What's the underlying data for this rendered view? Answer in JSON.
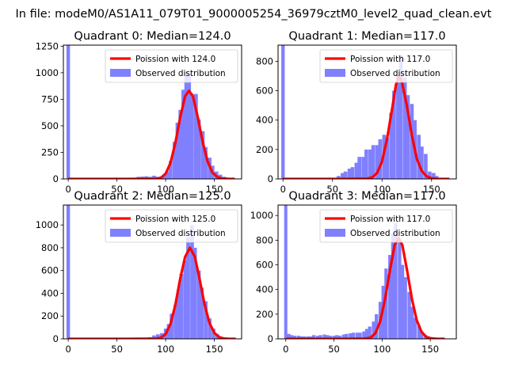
{
  "suptitle": "In file: modeM0/AS1A11_079T01_9000005254_36979cztM0_level2_quad_clean.evt",
  "chart_data": [
    {
      "type": "bar",
      "title": "Quadrant 0: Median=124.0",
      "median": 124.0,
      "xlim": [
        -5,
        178
      ],
      "ylim": [
        0,
        1260
      ],
      "xticks": [
        0,
        50,
        100,
        150
      ],
      "yticks": [
        0,
        250,
        500,
        750,
        1000,
        1250
      ],
      "bin_width": 3.6,
      "zero_bin": 1260,
      "legend": {
        "position": "upper right",
        "entries": [
          "Poission with 124.0",
          "Observed distribution"
        ]
      },
      "observed": [
        [
          72,
          20
        ],
        [
          76,
          22
        ],
        [
          80,
          25
        ],
        [
          84,
          20
        ],
        [
          88,
          30
        ],
        [
          92,
          20
        ],
        [
          96,
          25
        ],
        [
          99,
          40
        ],
        [
          102,
          70
        ],
        [
          105,
          170
        ],
        [
          109,
          350
        ],
        [
          112,
          530
        ],
        [
          115,
          650
        ],
        [
          118,
          840
        ],
        [
          121,
          1010
        ],
        [
          124,
          990
        ],
        [
          127,
          800
        ],
        [
          131,
          800
        ],
        [
          134,
          560
        ],
        [
          138,
          450
        ],
        [
          141,
          300
        ],
        [
          145,
          200
        ],
        [
          148,
          125
        ],
        [
          152,
          70
        ],
        [
          156,
          40
        ],
        [
          160,
          20
        ],
        [
          164,
          10
        ]
      ],
      "poisson": [
        [
          0,
          0
        ],
        [
          60,
          0
        ],
        [
          90,
          2
        ],
        [
          95,
          10
        ],
        [
          100,
          50
        ],
        [
          105,
          150
        ],
        [
          110,
          340
        ],
        [
          115,
          580
        ],
        [
          120,
          780
        ],
        [
          124,
          830
        ],
        [
          128,
          780
        ],
        [
          133,
          580
        ],
        [
          138,
          350
        ],
        [
          143,
          165
        ],
        [
          148,
          60
        ],
        [
          153,
          18
        ],
        [
          158,
          4
        ],
        [
          165,
          0
        ],
        [
          171,
          0
        ]
      ]
    },
    {
      "type": "bar",
      "title": "Quadrant 1: Median=117.0",
      "median": 117.0,
      "xlim": [
        -5,
        175
      ],
      "ylim": [
        0,
        910
      ],
      "xticks": [
        0,
        50,
        100,
        150
      ],
      "yticks": [
        0,
        200,
        400,
        600,
        800
      ],
      "bin_width": 3.5,
      "zero_bin": 910,
      "legend": {
        "position": "upper right",
        "entries": [
          "Poission with 117.0",
          "Observed distribution"
        ]
      },
      "observed": [
        [
          56,
          20
        ],
        [
          60,
          40
        ],
        [
          63,
          50
        ],
        [
          67,
          70
        ],
        [
          70,
          80
        ],
        [
          74,
          110
        ],
        [
          77,
          150
        ],
        [
          81,
          150
        ],
        [
          84,
          200
        ],
        [
          88,
          200
        ],
        [
          91,
          230
        ],
        [
          95,
          230
        ],
        [
          98,
          270
        ],
        [
          102,
          300
        ],
        [
          105,
          280
        ],
        [
          109,
          450
        ],
        [
          112,
          600
        ],
        [
          116,
          700
        ],
        [
          119,
          840
        ],
        [
          123,
          690
        ],
        [
          126,
          570
        ],
        [
          130,
          510
        ],
        [
          133,
          400
        ],
        [
          137,
          300
        ],
        [
          140,
          220
        ],
        [
          144,
          170
        ],
        [
          148,
          50
        ],
        [
          152,
          40
        ],
        [
          155,
          20
        ],
        [
          160,
          8
        ]
      ],
      "poisson": [
        [
          0,
          0
        ],
        [
          60,
          0
        ],
        [
          85,
          2
        ],
        [
          90,
          10
        ],
        [
          95,
          40
        ],
        [
          100,
          120
        ],
        [
          105,
          270
        ],
        [
          110,
          470
        ],
        [
          114,
          640
        ],
        [
          117,
          700
        ],
        [
          120,
          660
        ],
        [
          125,
          500
        ],
        [
          130,
          300
        ],
        [
          135,
          140
        ],
        [
          140,
          55
        ],
        [
          145,
          18
        ],
        [
          150,
          5
        ],
        [
          155,
          1
        ],
        [
          168,
          0
        ]
      ]
    },
    {
      "type": "bar",
      "title": "Quadrant 2: Median=125.0",
      "median": 125.0,
      "xlim": [
        -5,
        178
      ],
      "ylim": [
        0,
        1175
      ],
      "xticks": [
        0,
        50,
        100,
        150
      ],
      "yticks": [
        0,
        200,
        400,
        600,
        800,
        1000
      ],
      "bin_width": 3.6,
      "zero_bin": 1175,
      "legend": {
        "position": "upper right",
        "entries": [
          "Poission with 125.0",
          "Observed distribution"
        ]
      },
      "observed": [
        [
          76,
          5
        ],
        [
          80,
          10
        ],
        [
          84,
          15
        ],
        [
          88,
          30
        ],
        [
          92,
          40
        ],
        [
          96,
          50
        ],
        [
          100,
          90
        ],
        [
          103,
          130
        ],
        [
          106,
          220
        ],
        [
          110,
          300
        ],
        [
          113,
          430
        ],
        [
          116,
          570
        ],
        [
          120,
          690
        ],
        [
          123,
          890
        ],
        [
          127,
          1000
        ],
        [
          130,
          800
        ],
        [
          134,
          600
        ],
        [
          137,
          450
        ],
        [
          141,
          330
        ],
        [
          145,
          180
        ],
        [
          149,
          90
        ],
        [
          153,
          40
        ],
        [
          157,
          15
        ],
        [
          161,
          5
        ]
      ],
      "poisson": [
        [
          0,
          0
        ],
        [
          60,
          0
        ],
        [
          90,
          2
        ],
        [
          95,
          10
        ],
        [
          100,
          40
        ],
        [
          105,
          130
        ],
        [
          110,
          300
        ],
        [
          115,
          530
        ],
        [
          120,
          720
        ],
        [
          125,
          800
        ],
        [
          130,
          720
        ],
        [
          135,
          520
        ],
        [
          140,
          300
        ],
        [
          145,
          140
        ],
        [
          150,
          52
        ],
        [
          155,
          15
        ],
        [
          160,
          3
        ],
        [
          165,
          0
        ],
        [
          172,
          0
        ]
      ]
    },
    {
      "type": "bar",
      "title": "Quadrant 3: Median=117.0",
      "median": 117.0,
      "xlim": [
        -8,
        177
      ],
      "ylim": [
        0,
        1085
      ],
      "xticks": [
        0,
        50,
        100,
        150
      ],
      "yticks": [
        0,
        200,
        400,
        600,
        800,
        1000
      ],
      "bin_width": 3.3,
      "zero_bin": 1085,
      "legend": {
        "position": "upper right",
        "entries": [
          "Poission with 117.0",
          "Observed distribution"
        ]
      },
      "observed": [
        [
          3,
          40
        ],
        [
          6,
          30
        ],
        [
          9,
          25
        ],
        [
          13,
          25
        ],
        [
          16,
          20
        ],
        [
          19,
          20
        ],
        [
          23,
          20
        ],
        [
          26,
          20
        ],
        [
          29,
          30
        ],
        [
          33,
          25
        ],
        [
          36,
          30
        ],
        [
          40,
          35
        ],
        [
          43,
          30
        ],
        [
          46,
          25
        ],
        [
          50,
          25
        ],
        [
          53,
          30
        ],
        [
          56,
          25
        ],
        [
          60,
          35
        ],
        [
          63,
          40
        ],
        [
          67,
          45
        ],
        [
          70,
          50
        ],
        [
          74,
          50
        ],
        [
          77,
          50
        ],
        [
          81,
          60
        ],
        [
          84,
          80
        ],
        [
          87,
          100
        ],
        [
          91,
          140
        ],
        [
          94,
          200
        ],
        [
          98,
          300
        ],
        [
          101,
          430
        ],
        [
          104,
          570
        ],
        [
          108,
          680
        ],
        [
          111,
          850
        ],
        [
          114,
          940
        ],
        [
          118,
          800
        ],
        [
          121,
          600
        ],
        [
          124,
          500
        ],
        [
          128,
          380
        ],
        [
          131,
          260
        ],
        [
          134,
          170
        ],
        [
          138,
          110
        ],
        [
          141,
          60
        ],
        [
          145,
          30
        ],
        [
          148,
          15
        ],
        [
          152,
          5
        ]
      ],
      "poisson": [
        [
          0,
          0
        ],
        [
          60,
          0
        ],
        [
          82,
          2
        ],
        [
          88,
          10
        ],
        [
          93,
          45
        ],
        [
          98,
          140
        ],
        [
          103,
          320
        ],
        [
          108,
          550
        ],
        [
          113,
          760
        ],
        [
          117,
          820
        ],
        [
          121,
          760
        ],
        [
          126,
          550
        ],
        [
          131,
          320
        ],
        [
          136,
          150
        ],
        [
          141,
          55
        ],
        [
          146,
          15
        ],
        [
          151,
          4
        ],
        [
          156,
          1
        ],
        [
          165,
          0
        ]
      ]
    }
  ]
}
